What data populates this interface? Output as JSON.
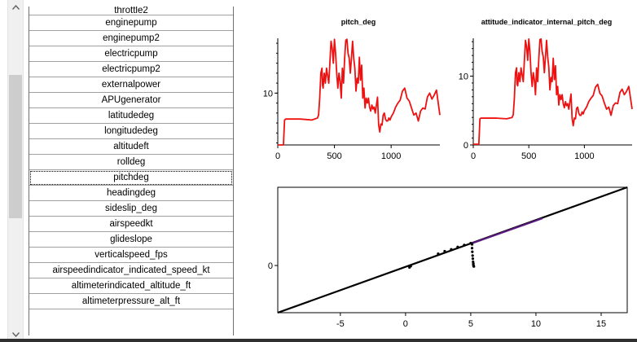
{
  "variable_list": {
    "items": [
      "throttle2",
      "enginepump",
      "enginepump2",
      "electricpump",
      "electricpump2",
      "externalpower",
      "APUgenerator",
      "latitudedeg",
      "longitudedeg",
      "altitudeft",
      "rolldeg",
      "pitchdeg",
      "headingdeg",
      "sideslip_deg",
      "airspeedkt",
      "glideslope",
      "verticalspeed_fps",
      "airspeedindicator_indicated_speed_kt",
      "altimeterindicated_altitude_ft",
      "altimeterpressure_alt_ft"
    ],
    "selected": "pitchdeg"
  },
  "icons": {
    "up": "scroll-up-arrow-icon",
    "down": "scroll-down-arrow-icon"
  },
  "colors": {
    "series_line": "#ee1111",
    "scatter_line": "#000000",
    "scatter_highlight": "#5a1a80"
  },
  "chart_data": [
    {
      "type": "line",
      "title": "pitch_deg",
      "xticks": [
        "0",
        "500",
        "1000"
      ],
      "yticks": [
        "10"
      ],
      "xlim": [
        0,
        1430
      ],
      "ylim": [
        4.8,
        15.5
      ],
      "x": [
        0,
        30,
        50,
        60,
        70,
        200,
        300,
        350,
        360,
        370,
        380,
        390,
        395,
        400,
        410,
        420,
        430,
        450,
        470,
        480,
        490,
        500,
        510,
        520,
        530,
        540,
        550,
        560,
        570,
        580,
        590,
        600,
        610,
        620,
        630,
        640,
        650,
        660,
        670,
        680,
        690,
        700,
        710,
        720,
        730,
        740,
        750,
        760,
        770,
        780,
        790,
        800,
        810,
        820,
        830,
        840,
        850,
        860,
        870,
        880,
        890,
        900,
        910,
        920,
        930,
        940,
        950,
        960,
        970,
        980,
        990,
        1000,
        1020,
        1040,
        1060,
        1080,
        1100,
        1120,
        1140,
        1160,
        1180,
        1200,
        1220,
        1240,
        1260,
        1280,
        1300,
        1320,
        1340,
        1360,
        1380,
        1400,
        1430
      ],
      "y": [
        4.8,
        4.8,
        4.8,
        7.3,
        7.4,
        7.4,
        7.3,
        7.5,
        7.8,
        9.5,
        12,
        12.5,
        10.8,
        10.5,
        12,
        11,
        12.5,
        11,
        15.2,
        14.5,
        13,
        15.4,
        14,
        12,
        10.5,
        12,
        11.2,
        9.5,
        12.5,
        11,
        13.5,
        15.3,
        15.4,
        14,
        13.5,
        12,
        13.5,
        15.2,
        13.5,
        12.5,
        10.2,
        11.5,
        11,
        13.6,
        11.3,
        12.8,
        9.5,
        10.5,
        8.5,
        9.5,
        9,
        9.5,
        8.6,
        8.2,
        8.8,
        8.4,
        8.6,
        8,
        8.8,
        9.6,
        6.8,
        6.1,
        6.9,
        6.8,
        7.8,
        8,
        7.4,
        7.2,
        7.2,
        7.5,
        7.3,
        7.6,
        8,
        8.6,
        9,
        9.3,
        10.2,
        10.5,
        9.5,
        9.2,
        8.5,
        7.8,
        8,
        7.2,
        8.2,
        8.5,
        8.4,
        9.6,
        10,
        9.4,
        9.8,
        10.3,
        7.8
      ]
    },
    {
      "type": "line",
      "title": "attitude_indicator_internal_pitch_deg",
      "xticks": [
        "0",
        "500",
        "1000"
      ],
      "yticks": [
        "0",
        "10"
      ],
      "xlim": [
        0,
        1430
      ],
      "ylim": [
        0,
        15.5
      ],
      "x": [
        0,
        30,
        50,
        60,
        70,
        200,
        300,
        350,
        360,
        370,
        380,
        390,
        395,
        400,
        410,
        420,
        430,
        450,
        470,
        480,
        490,
        500,
        510,
        520,
        530,
        540,
        550,
        560,
        570,
        580,
        590,
        600,
        610,
        620,
        630,
        640,
        650,
        660,
        670,
        680,
        690,
        700,
        710,
        720,
        730,
        740,
        750,
        760,
        770,
        780,
        790,
        800,
        810,
        820,
        830,
        840,
        850,
        860,
        870,
        880,
        890,
        900,
        910,
        920,
        930,
        940,
        950,
        960,
        970,
        980,
        990,
        1000,
        1020,
        1040,
        1060,
        1080,
        1100,
        1120,
        1140,
        1160,
        1180,
        1200,
        1220,
        1240,
        1260,
        1280,
        1300,
        1320,
        1340,
        1360,
        1380,
        1400,
        1430
      ],
      "y": [
        0.1,
        0.1,
        0.1,
        3.8,
        3.9,
        3.9,
        3.8,
        4,
        4.4,
        6.8,
        10.5,
        11.2,
        8.8,
        8.6,
        10.5,
        9.2,
        11.2,
        9.2,
        15.2,
        14.3,
        12.3,
        15.4,
        13.6,
        10.5,
        8.5,
        10.5,
        9.5,
        7.3,
        11.2,
        9.2,
        12.5,
        15.3,
        15.4,
        13.6,
        12.8,
        10.5,
        12.8,
        15.2,
        12.8,
        11.3,
        8,
        9.8,
        9.2,
        12.6,
        9.5,
        11.5,
        7.3,
        8.5,
        5.8,
        7.3,
        6.6,
        7.3,
        6,
        5.4,
        6.3,
        5.7,
        6,
        5.2,
        6.3,
        7.4,
        3.8,
        2.8,
        3.9,
        3.8,
        5.3,
        5.5,
        4.6,
        4.3,
        4.3,
        4.8,
        4.5,
        5,
        5.5,
        6.3,
        6.8,
        7.2,
        8.4,
        8.8,
        7.5,
        7.1,
        6.1,
        5.2,
        5.5,
        4.3,
        5.7,
        6.1,
        6,
        7.6,
        8.1,
        7.3,
        7.8,
        8.5,
        5.2
      ]
    },
    {
      "type": "scatter",
      "xticks": [
        "-5",
        "0",
        "5",
        "10",
        "15"
      ],
      "yticks": [
        "0"
      ],
      "xlim": [
        -9.8,
        17
      ],
      "ylim": [
        -7.6,
        12.6
      ],
      "line": {
        "x": [
          -9.8,
          17
        ],
        "y": [
          -7.6,
          12.6
        ]
      },
      "highlight": {
        "x": [
          5,
          10.5
        ],
        "y": [
          3.5,
          7.6
        ]
      },
      "points": {
        "x": [
          0.3,
          0.4,
          2.5,
          3.0,
          3.5,
          4.0,
          4.5,
          5.0,
          5.1,
          5.1,
          5.12,
          5.14,
          5.16,
          5.18,
          5.2,
          5.2,
          5.22,
          5.24
        ],
        "y": [
          -0.3,
          -0.1,
          1.9,
          2.3,
          2.6,
          3.0,
          3.3,
          3.6,
          3.4,
          2.8,
          2.2,
          1.6,
          1.1,
          0.6,
          0.3,
          0.1,
          -0.1,
          -0.15
        ]
      }
    }
  ]
}
